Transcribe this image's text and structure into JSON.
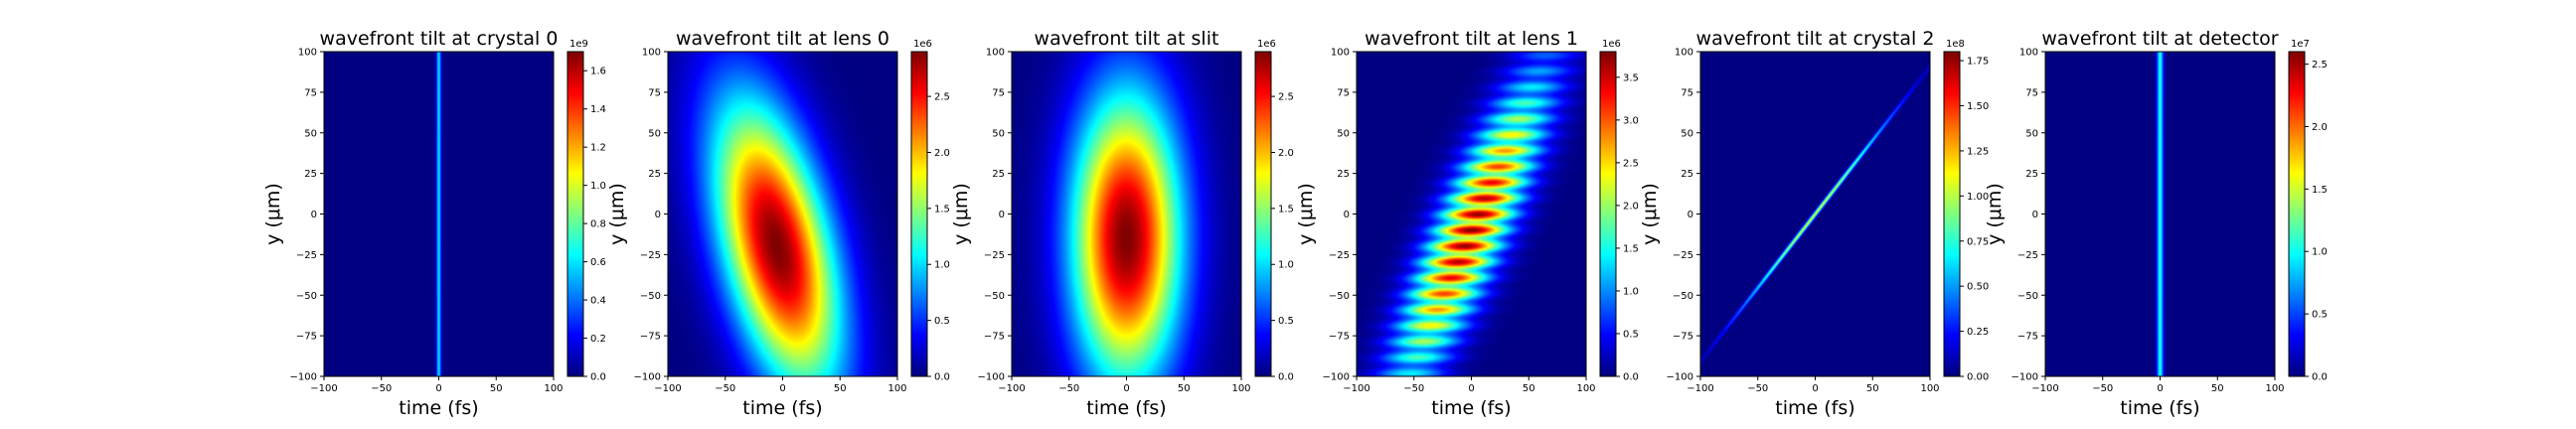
{
  "chart_data": [
    {
      "type": "heatmap",
      "title": "wavefront tilt at crystal 0",
      "xlabel": "time (fs)",
      "ylabel": "y (μm)",
      "xlim": [
        -100,
        100
      ],
      "ylim": [
        -100,
        100
      ],
      "xticks": [
        -100,
        -50,
        0,
        50,
        100
      ],
      "yticks": [
        -100,
        -75,
        -50,
        -25,
        0,
        25,
        50,
        75,
        100
      ],
      "colormap": "jet",
      "colorbar": {
        "min": 0,
        "max": 1700000000.0,
        "exponent_label": "1e9",
        "ticks": [
          0,
          0.2,
          0.4,
          0.6,
          0.8,
          1.0,
          1.2,
          1.4,
          1.6
        ]
      },
      "feature": {
        "shape": "line",
        "center_t_fs": 0,
        "tilt_fs_per_um": 0,
        "width_t_fs": 1.5,
        "extent_y_um": 500,
        "peak_intensity": 0.35
      }
    },
    {
      "type": "heatmap",
      "title": "wavefront tilt at lens 0",
      "xlabel": "time (fs)",
      "ylabel": "y (μm)",
      "xlim": [
        -100,
        100
      ],
      "ylim": [
        -100,
        100
      ],
      "xticks": [
        -100,
        -50,
        0,
        50,
        100
      ],
      "yticks": [
        -100,
        -75,
        -50,
        -25,
        0,
        25,
        50,
        75,
        100
      ],
      "colormap": "jet",
      "colorbar": {
        "min": 0,
        "max": 2900000.0,
        "exponent_label": "1e6",
        "ticks": [
          0.0,
          0.5,
          1.0,
          1.5,
          2.0,
          2.5
        ]
      },
      "feature": {
        "shape": "blob",
        "center_t_fs": -5,
        "center_y_um": -20,
        "tilt_fs_per_um": -0.3,
        "width_t_fs": 33,
        "width_y_um": 62,
        "peak_intensity": 1.0
      }
    },
    {
      "type": "heatmap",
      "title": "wavefront tilt at slit",
      "xlabel": "time (fs)",
      "ylabel": "y (μm)",
      "xlim": [
        -100,
        100
      ],
      "ylim": [
        -100,
        100
      ],
      "xticks": [
        -100,
        -50,
        0,
        50,
        100
      ],
      "yticks": [
        -100,
        -75,
        -50,
        -25,
        0,
        25,
        50,
        75,
        100
      ],
      "colormap": "jet",
      "colorbar": {
        "min": 0,
        "max": 2900000.0,
        "exponent_label": "1e6",
        "ticks": [
          0.0,
          0.5,
          1.0,
          1.5,
          2.0,
          2.5
        ]
      },
      "feature": {
        "shape": "blob",
        "center_t_fs": 0,
        "center_y_um": -15,
        "tilt_fs_per_um": 0,
        "width_t_fs": 33,
        "width_y_um": 62,
        "peak_intensity": 1.0
      }
    },
    {
      "type": "heatmap",
      "title": "wavefront tilt at lens 1",
      "xlabel": "time (fs)",
      "ylabel": "y (μm)",
      "xlim": [
        -100,
        100
      ],
      "ylim": [
        -100,
        100
      ],
      "xticks": [
        -100,
        -50,
        0,
        50,
        100
      ],
      "yticks": [
        -100,
        -75,
        -50,
        -25,
        0,
        25,
        50,
        75,
        100
      ],
      "colormap": "jet",
      "colorbar": {
        "min": 0,
        "max": 3800000.0,
        "exponent_label": "1e6",
        "ticks": [
          0.0,
          0.5,
          1.0,
          1.5,
          2.0,
          2.5,
          3.0,
          3.5
        ]
      },
      "feature": {
        "shape": "striped",
        "center_t_fs": 0,
        "center_y_um": -10,
        "tilt_fs_per_um": 0.6,
        "width_t_fs": 22,
        "width_y_um": 62,
        "peak_intensity": 1.0
      }
    },
    {
      "type": "heatmap",
      "title": "wavefront tilt at crystal 2",
      "xlabel": "time (fs)",
      "ylabel": "y (μm)",
      "xlim": [
        -100,
        100
      ],
      "ylim": [
        -100,
        100
      ],
      "xticks": [
        -100,
        -50,
        0,
        50,
        100
      ],
      "yticks": [
        -100,
        -75,
        -50,
        -25,
        0,
        25,
        50,
        75,
        100
      ],
      "colormap": "jet",
      "colorbar": {
        "min": 0,
        "max": 180000000.0,
        "exponent_label": "1e8",
        "ticks": [
          0.0,
          0.25,
          0.5,
          0.75,
          1.0,
          1.25,
          1.5,
          1.75
        ]
      },
      "feature": {
        "shape": "line",
        "center_t_fs": 0,
        "center_y_um": 0,
        "tilt_fs_per_um": 1.1,
        "width_t_fs": 1.5,
        "extent_y_um": 42,
        "peak_intensity": 0.6
      }
    },
    {
      "type": "heatmap",
      "title": "wavefront tilt at detector",
      "xlabel": "time (fs)",
      "ylabel": "y (μm)",
      "xlim": [
        -100,
        100
      ],
      "ylim": [
        -100,
        100
      ],
      "xticks": [
        -100,
        -50,
        0,
        50,
        100
      ],
      "yticks": [
        -100,
        -75,
        -50,
        -25,
        0,
        25,
        50,
        75,
        100
      ],
      "colormap": "jet",
      "colorbar": {
        "min": 0,
        "max": 26000000.0,
        "exponent_label": "1e7",
        "ticks": [
          0.0,
          0.5,
          1.0,
          1.5,
          2.0,
          2.5
        ]
      },
      "feature": {
        "shape": "line",
        "center_t_fs": 0,
        "tilt_fs_per_um": 0,
        "width_t_fs": 2,
        "extent_y_um": 500,
        "peak_intensity": 0.4
      }
    }
  ]
}
